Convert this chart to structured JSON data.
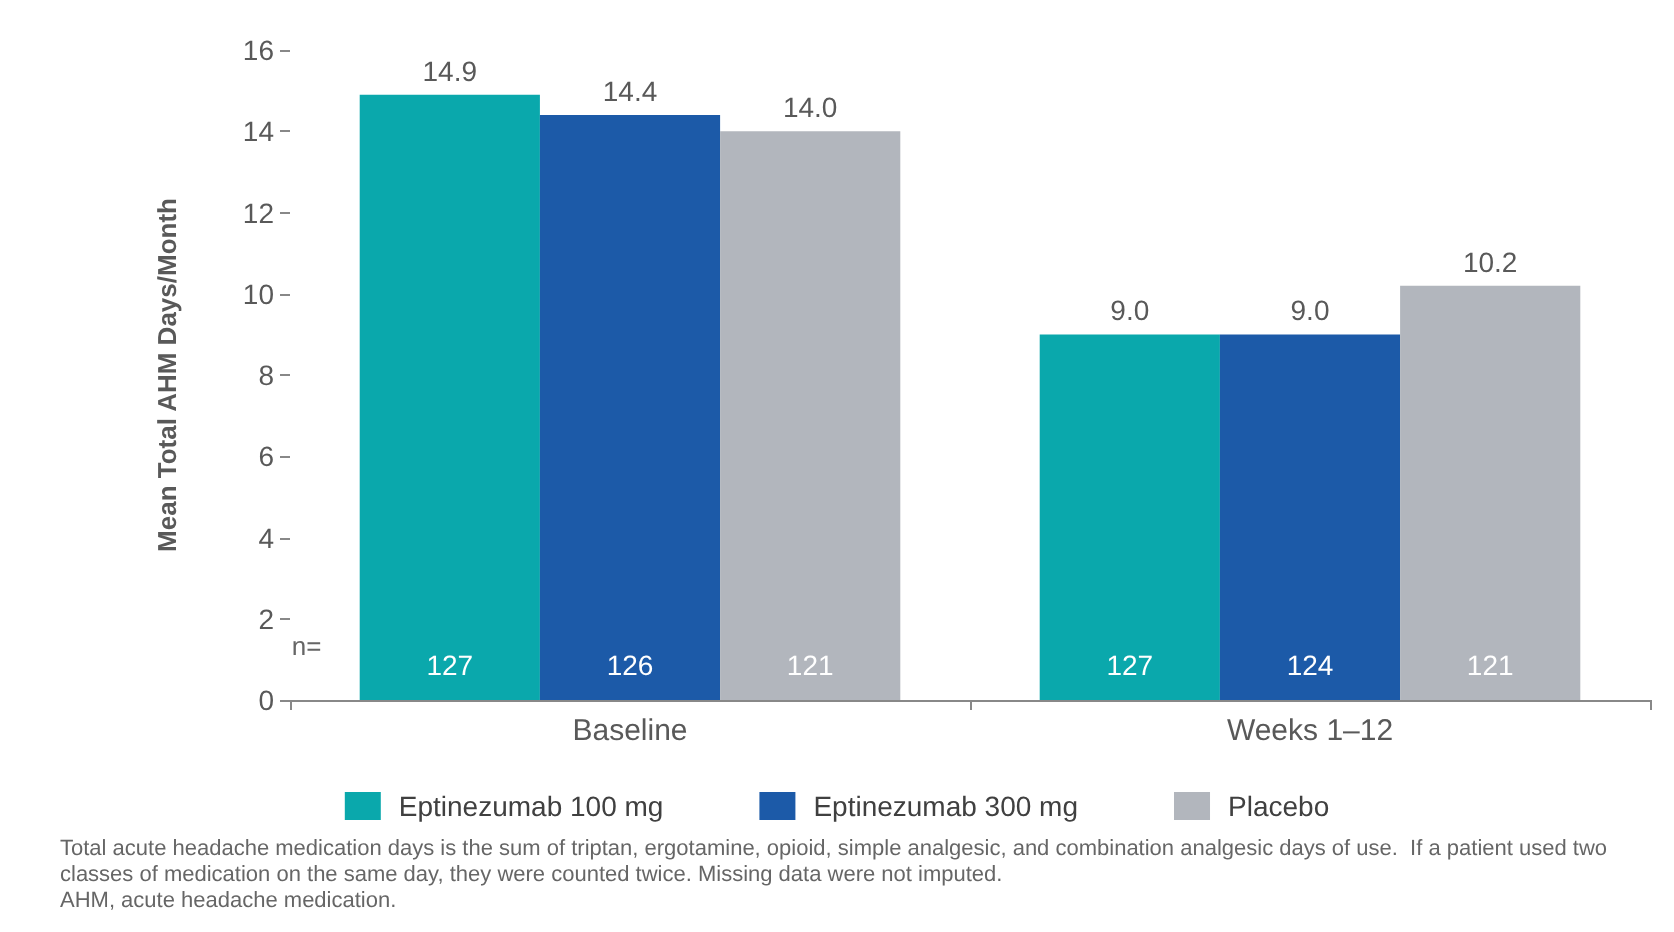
{
  "chart_data": {
    "type": "bar",
    "ylabel": "Mean Total AHM Days/Month",
    "categories": [
      "Baseline",
      "Weeks 1–12"
    ],
    "series": [
      {
        "name": "Eptinezumab 100 mg",
        "color": "#0aa8ac",
        "values": [
          14.9,
          9.0
        ],
        "value_labels": [
          "14.9",
          "9.0"
        ]
      },
      {
        "name": "Eptinezumab 300 mg",
        "color": "#1c5aa8",
        "values": [
          14.4,
          9.0
        ],
        "value_labels": [
          "14.4",
          "9.0"
        ]
      },
      {
        "name": "Placebo",
        "color": "#b2b6bd",
        "values": [
          14.0,
          10.2
        ],
        "value_labels": [
          "14.0",
          "10.2"
        ]
      }
    ],
    "ylim": [
      0,
      16
    ],
    "yticks": [
      0,
      2,
      4,
      6,
      8,
      10,
      12,
      14,
      16
    ],
    "grid": false,
    "legend": "bottom",
    "annotations": [
      "n=",
      "127",
      "126",
      "121",
      "127",
      "124",
      "121",
      "Total acute headache medication days is the sum of triptan, ergotamine, opioid, simple analgesic, and combination analgesic days of use.  If a patient used two classes of medication on the same day, they were counted twice. Missing data were not imputed.",
      "AHM, acute headache medication."
    ]
  }
}
